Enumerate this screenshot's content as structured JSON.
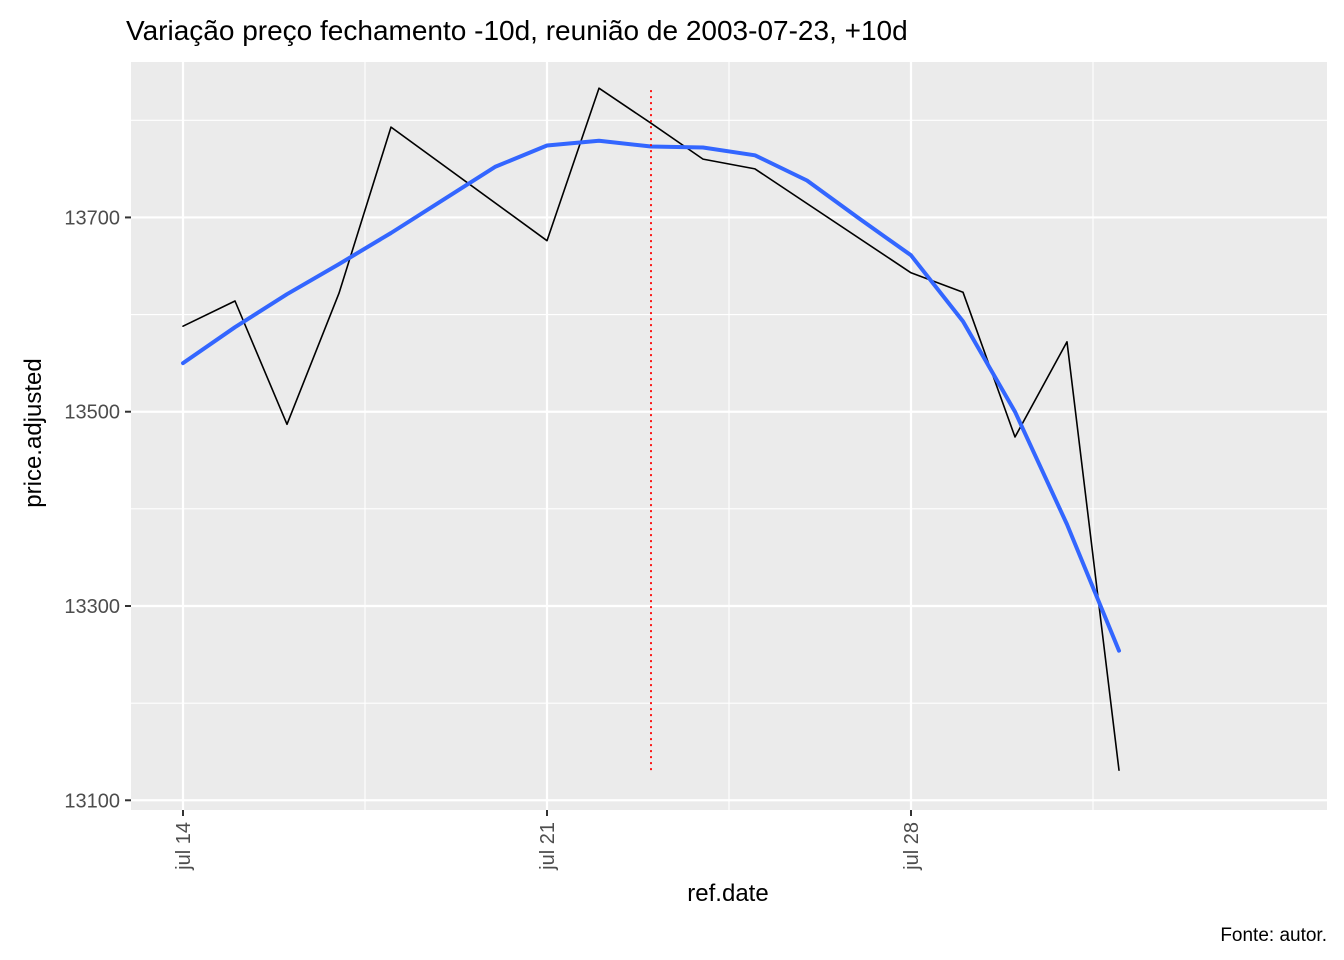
{
  "chart_data": {
    "type": "line",
    "title": "Variação preço fechamento -10d, reunião de 2003-07-23, +10d",
    "xlabel": "ref.date",
    "ylabel": "price.adjusted",
    "caption": "Fonte: autor.",
    "x_ticks": [
      {
        "date": "2003-07-14",
        "label": "jul 14"
      },
      {
        "date": "2003-07-21",
        "label": "jul 21"
      },
      {
        "date": "2003-07-28",
        "label": "jul 28"
      }
    ],
    "y_ticks": [
      13100,
      13300,
      13500,
      13700
    ],
    "xlim": [
      "2003-07-13",
      "2003-08-05"
    ],
    "ylim": [
      13090,
      13860
    ],
    "grid": true,
    "series": [
      {
        "color": "#000000",
        "points": [
          {
            "x": "2003-07-14",
            "y": 13588
          },
          {
            "x": "2003-07-15",
            "y": 13614
          },
          {
            "x": "2003-07-16",
            "y": 13487
          },
          {
            "x": "2003-07-17",
            "y": 13622
          },
          {
            "x": "2003-07-18",
            "y": 13793
          },
          {
            "x": "2003-07-21",
            "y": 13676
          },
          {
            "x": "2003-07-22",
            "y": 13833
          },
          {
            "x": "2003-07-23",
            "y": 13797
          },
          {
            "x": "2003-07-24",
            "y": 13760
          },
          {
            "x": "2003-07-25",
            "y": 13750
          },
          {
            "x": "2003-07-28",
            "y": 13643
          },
          {
            "x": "2003-07-29",
            "y": 13623
          },
          {
            "x": "2003-07-30",
            "y": 13474
          },
          {
            "x": "2003-07-31",
            "y": 13572
          },
          {
            "x": "2003-08-01",
            "y": 13131
          }
        ]
      },
      {
        "color": "#3366FF",
        "points": [
          {
            "x": "2003-07-14",
            "y": 13550
          },
          {
            "x": "2003-07-15",
            "y": 13587
          },
          {
            "x": "2003-07-16",
            "y": 13621
          },
          {
            "x": "2003-07-17",
            "y": 13652
          },
          {
            "x": "2003-07-18",
            "y": 13684
          },
          {
            "x": "2003-07-19",
            "y": 13718
          },
          {
            "x": "2003-07-20",
            "y": 13752
          },
          {
            "x": "2003-07-21",
            "y": 13774
          },
          {
            "x": "2003-07-22",
            "y": 13779
          },
          {
            "x": "2003-07-23",
            "y": 13773
          },
          {
            "x": "2003-07-24",
            "y": 13772
          },
          {
            "x": "2003-07-25",
            "y": 13764
          },
          {
            "x": "2003-07-26",
            "y": 13738
          },
          {
            "x": "2003-07-27",
            "y": 13699
          },
          {
            "x": "2003-07-28",
            "y": 13661
          },
          {
            "x": "2003-07-29",
            "y": 13593
          },
          {
            "x": "2003-07-30",
            "y": 13500
          },
          {
            "x": "2003-07-31",
            "y": 13384
          },
          {
            "x": "2003-08-01",
            "y": 13254
          }
        ]
      }
    ],
    "reference_line": {
      "x": "2003-07-23",
      "y_range": [
        13131,
        13833
      ],
      "color": "#FF0000",
      "style": "dotted"
    }
  }
}
